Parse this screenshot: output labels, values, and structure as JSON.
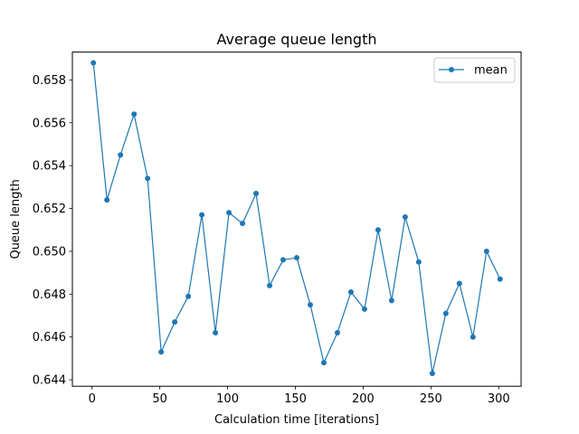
{
  "chart_data": {
    "type": "line",
    "title": "Average queue length",
    "xlabel": "Calculation time [iterations]",
    "ylabel": "Queue length",
    "xlim": [
      -14.5,
      316.5
    ],
    "ylim": [
      0.6437,
      0.6593
    ],
    "xticks": [
      0,
      50,
      100,
      150,
      200,
      250,
      300
    ],
    "yticks": [
      0.644,
      0.646,
      0.648,
      0.65,
      0.652,
      0.654,
      0.656,
      0.658
    ],
    "ytick_labels": [
      "0.644",
      "0.646",
      "0.648",
      "0.650",
      "0.652",
      "0.654",
      "0.656",
      "0.658"
    ],
    "grid": false,
    "legend_position": "top-right",
    "series": [
      {
        "name": "mean",
        "color": "#1f77b4",
        "marker": "circle",
        "x": [
          1,
          11,
          21,
          31,
          41,
          51,
          61,
          71,
          81,
          91,
          101,
          111,
          121,
          131,
          141,
          151,
          161,
          171,
          181,
          191,
          201,
          211,
          221,
          231,
          241,
          251,
          261,
          271,
          281,
          291,
          301
        ],
        "y": [
          0.6588,
          0.6524,
          0.6545,
          0.6564,
          0.6534,
          0.6453,
          0.6467,
          0.6479,
          0.6517,
          0.6462,
          0.6518,
          0.6513,
          0.6527,
          0.6484,
          0.6496,
          0.6497,
          0.6475,
          0.6448,
          0.6462,
          0.6481,
          0.6473,
          0.651,
          0.6477,
          0.6516,
          0.6495,
          0.6443,
          0.6471,
          0.6485,
          0.646,
          0.65,
          0.6487
        ]
      }
    ]
  }
}
